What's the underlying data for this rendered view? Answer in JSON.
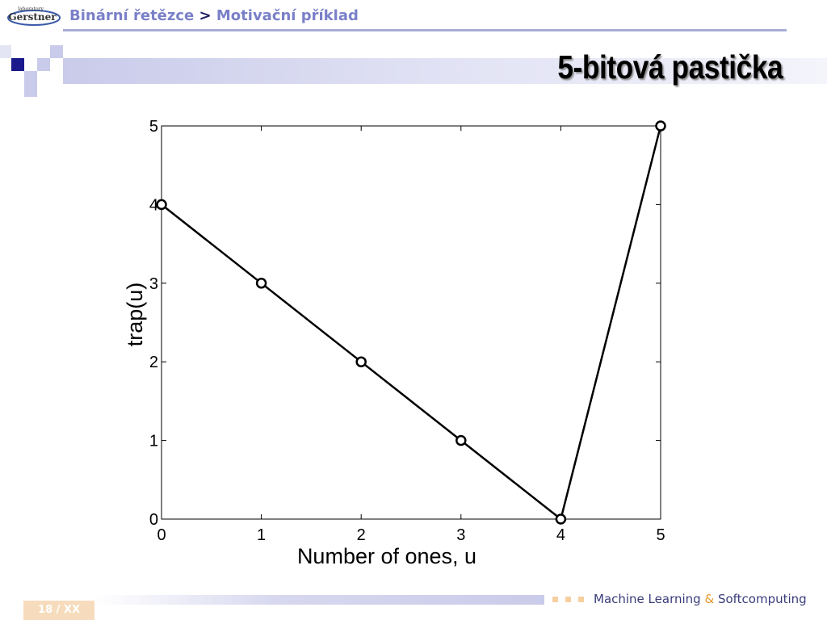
{
  "logo": {
    "line1": "laboratory",
    "line2": "Gerstner"
  },
  "breadcrumb": {
    "section": "Binární řetězce",
    "separator": ">",
    "page": "Motivační příklad"
  },
  "slide_title": "5-bitová pastička",
  "chart_data": {
    "type": "line",
    "x": [
      0,
      1,
      2,
      3,
      4,
      5
    ],
    "y": [
      4,
      3,
      2,
      1,
      0,
      5
    ],
    "xlabel": "Number of ones, u",
    "ylabel": "trap(u)",
    "xlim": [
      0,
      5
    ],
    "ylim": [
      0,
      5
    ],
    "xticks": [
      "0",
      "1",
      "2",
      "3",
      "4",
      "5"
    ],
    "yticks": [
      "0",
      "1",
      "2",
      "3",
      "4",
      "5"
    ],
    "marker": "circle-open",
    "line_color": "#000000",
    "grid": false
  },
  "footer": {
    "page_number": "18 / XX",
    "text_before": "Machine Learning",
    "ampersand": "&",
    "text_after": "Softcomputing"
  },
  "colors": {
    "breadcrumb": "#7a80c8",
    "accent_square": "#1a1a8c",
    "light_square": "#c9cbea",
    "footer_accent": "#e89a2b"
  }
}
